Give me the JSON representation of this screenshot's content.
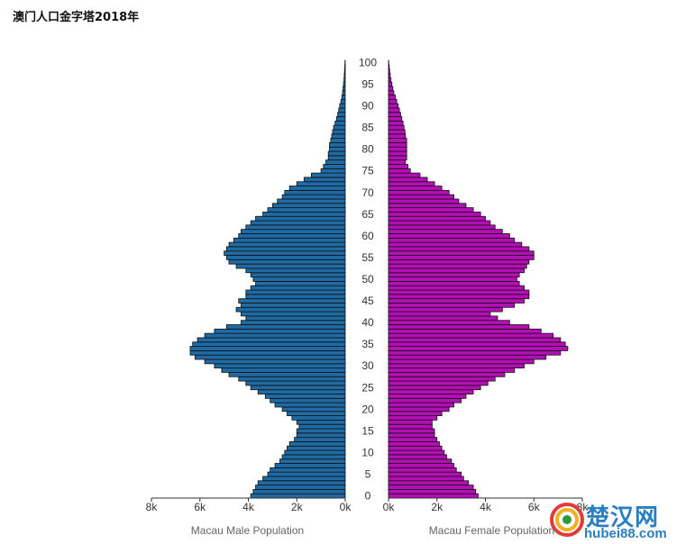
{
  "title": "澳门人口金字塔2018年",
  "watermark": {
    "brand": "楚汉网",
    "url": "hubei88.com"
  },
  "colors": {
    "male": "#1f6aa3",
    "female": "#b40fb4",
    "edge": "#111111"
  },
  "chart_data": {
    "type": "bar",
    "orientation": "horizontal-pyramid",
    "title": "澳门人口金字塔2018年",
    "y_ticks": [
      "0",
      "5",
      "10",
      "15",
      "20",
      "25",
      "30",
      "35",
      "40",
      "45",
      "50",
      "55",
      "60",
      "65",
      "70",
      "75",
      "80",
      "85",
      "90",
      "95",
      "100"
    ],
    "x_ticks": [
      "8k",
      "6k",
      "4k",
      "2k",
      "0k"
    ],
    "x_ticks_right": [
      "0k",
      "2k",
      "4k",
      "6k",
      "8k"
    ],
    "xlim": [
      0,
      8000
    ],
    "ages": [
      0,
      1,
      2,
      3,
      4,
      5,
      6,
      7,
      8,
      9,
      10,
      11,
      12,
      13,
      14,
      15,
      16,
      17,
      18,
      19,
      20,
      21,
      22,
      23,
      24,
      25,
      26,
      27,
      28,
      29,
      30,
      31,
      32,
      33,
      34,
      35,
      36,
      37,
      38,
      39,
      40,
      41,
      42,
      43,
      44,
      45,
      46,
      47,
      48,
      49,
      50,
      51,
      52,
      53,
      54,
      55,
      56,
      57,
      58,
      59,
      60,
      61,
      62,
      63,
      64,
      65,
      66,
      67,
      68,
      69,
      70,
      71,
      72,
      73,
      74,
      75,
      76,
      77,
      78,
      79,
      80,
      81,
      82,
      83,
      84,
      85,
      86,
      87,
      88,
      89,
      90,
      91,
      92,
      93,
      94,
      95,
      96,
      97,
      98,
      99,
      100
    ],
    "series": [
      {
        "name": "Macau Male Population",
        "values": [
          3900,
          3800,
          3700,
          3600,
          3400,
          3200,
          3100,
          2900,
          2700,
          2600,
          2500,
          2400,
          2300,
          2100,
          2000,
          2000,
          1900,
          2000,
          2200,
          2400,
          2600,
          2900,
          3100,
          3300,
          3600,
          3900,
          4100,
          4400,
          4800,
          5100,
          5400,
          5800,
          6200,
          6400,
          6400,
          6300,
          6100,
          5800,
          5400,
          4900,
          4300,
          4100,
          4300,
          4500,
          4300,
          4400,
          4100,
          4100,
          3900,
          3700,
          3800,
          3900,
          4100,
          4500,
          4800,
          4900,
          5000,
          4900,
          4800,
          4600,
          4400,
          4300,
          4100,
          3900,
          3700,
          3400,
          3200,
          3000,
          2800,
          2600,
          2500,
          2300,
          2000,
          1700,
          1400,
          1000,
          900,
          800,
          700,
          700,
          650,
          650,
          600,
          560,
          520,
          480,
          420,
          360,
          310,
          270,
          230,
          180,
          140,
          110,
          90,
          70,
          50,
          40,
          30,
          20,
          10
        ]
      },
      {
        "name": "Macau Female Population",
        "values": [
          3700,
          3600,
          3500,
          3300,
          3100,
          3000,
          2800,
          2700,
          2600,
          2400,
          2300,
          2200,
          2100,
          2000,
          1900,
          1900,
          1800,
          1800,
          2000,
          2200,
          2500,
          2700,
          3000,
          3200,
          3500,
          3800,
          4100,
          4400,
          4800,
          5200,
          5600,
          6000,
          6500,
          7100,
          7400,
          7300,
          7100,
          6800,
          6300,
          5800,
          5000,
          4500,
          4200,
          4700,
          5200,
          5600,
          5800,
          5800,
          5600,
          5400,
          5300,
          5400,
          5600,
          5700,
          5800,
          6000,
          6000,
          5800,
          5500,
          5200,
          5000,
          4700,
          4400,
          4200,
          4000,
          3800,
          3500,
          3200,
          2900,
          2700,
          2500,
          2200,
          1900,
          1600,
          1300,
          900,
          800,
          700,
          750,
          750,
          750,
          750,
          750,
          700,
          680,
          640,
          600,
          550,
          500,
          450,
          400,
          340,
          280,
          220,
          180,
          140,
          100,
          70,
          50,
          30,
          10
        ]
      }
    ],
    "xlabel_left": "Macau Male Population",
    "xlabel_right": "Macau Female Population",
    "grid": false
  }
}
